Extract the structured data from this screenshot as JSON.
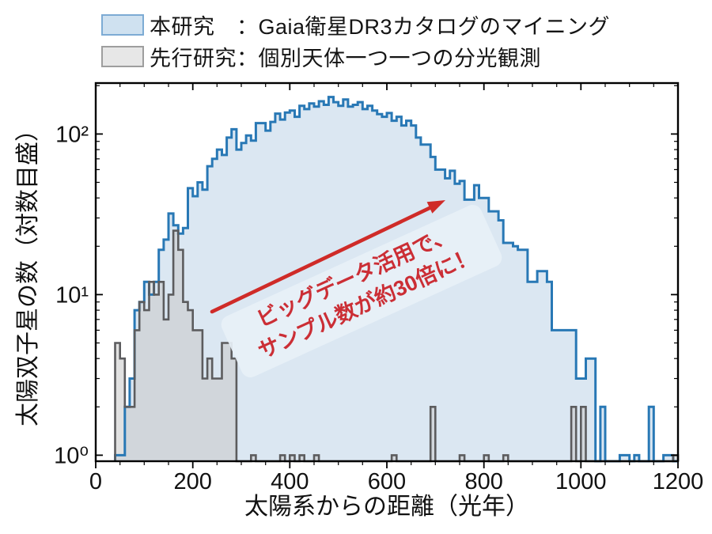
{
  "legend": {
    "items": [
      {
        "id": "this-study",
        "label": "本研究　：Gaia衛星DR3カタログのマイニング",
        "swatch_fill": "#cfe1f0",
        "swatch_border": "#7dabd4"
      },
      {
        "id": "prior-study",
        "label": "先行研究：個別天体一つ一つの分光観測",
        "swatch_fill": "#e7e7e7",
        "swatch_border": "#9e9e9e"
      }
    ]
  },
  "annotation": {
    "line1": "ビッグデータ活用で、",
    "line2": "サンプル数が約30倍に！",
    "text_color": "#cb2e35",
    "box_color": "rgba(231,240,248,0.93)",
    "arrow_color": "#cf2b28"
  },
  "axes": {
    "xlabel": "太陽系からの距離（光年）",
    "ylabel": "太陽双子星の数（対数目盛）",
    "x_ticks": [
      0,
      200,
      400,
      600,
      800,
      1000,
      1200
    ],
    "x_minor_step": 50,
    "y_tick_values": [
      1,
      10,
      100
    ],
    "y_tick_labels": [
      "10⁰",
      "10¹",
      "10²"
    ],
    "y_minor_values": [
      2,
      3,
      4,
      5,
      6,
      7,
      8,
      9,
      20,
      30,
      40,
      50,
      60,
      70,
      80,
      90,
      200
    ]
  },
  "chart_data": {
    "type": "histogram",
    "title": "",
    "xlabel": "太陽系からの距離（光年）",
    "ylabel": "太陽双子星の数（対数目盛）",
    "x_unit": "light-years",
    "bin_start": 40,
    "bin_width": 10,
    "xlim": [
      0,
      1200
    ],
    "ylim": [
      0.91,
      208
    ],
    "y_scale": "log",
    "grid": false,
    "legend_position": "top-left-outside",
    "series": [
      {
        "name": "本研究：Gaia衛星DR3カタログのマイニング",
        "edge_color": "#2878b5",
        "fill_color": "#dbe7f2",
        "values": [
          1,
          1,
          2,
          3,
          8,
          9,
          12,
          10,
          12,
          19,
          22,
          32,
          27,
          24,
          26,
          46,
          41,
          50,
          45,
          63,
          70,
          80,
          74,
          95,
          107,
          80,
          88,
          98,
          91,
          117,
          117,
          105,
          119,
          134,
          123,
          136,
          140,
          128,
          150,
          143,
          155,
          148,
          160,
          152,
          170,
          158,
          150,
          164,
          148,
          152,
          158,
          143,
          150,
          140,
          133,
          128,
          135,
          121,
          128,
          113,
          121,
          113,
          95,
          86,
          86,
          72,
          60,
          60,
          53,
          59,
          49,
          51,
          39,
          39,
          48,
          40,
          40,
          33,
          33,
          29,
          21,
          21,
          20,
          19,
          19,
          12,
          12,
          14,
          14,
          12,
          6,
          6,
          6,
          6,
          6,
          3,
          3,
          4,
          4,
          0,
          2,
          0,
          0,
          0,
          1,
          1,
          0,
          1,
          0,
          0,
          2,
          0,
          0,
          1,
          1,
          0
        ]
      },
      {
        "name": "先行研究：個別天体一つ一つの分光観測",
        "edge_color": "#5c5c5e",
        "fill_color": "rgba(200,200,200,0.55)",
        "values": [
          5,
          4,
          2,
          2,
          6,
          9,
          8,
          12,
          10,
          12,
          7,
          10,
          25,
          19,
          9,
          8,
          6,
          6,
          3,
          4,
          3,
          3,
          5,
          5,
          4,
          0,
          0,
          0,
          1,
          0,
          0,
          0,
          0,
          0,
          1,
          0,
          1,
          0,
          1,
          0,
          0,
          1,
          0,
          0,
          0,
          0,
          0,
          0,
          0,
          0,
          0,
          0,
          0,
          0,
          0,
          0,
          0,
          1,
          0,
          0,
          0,
          0,
          0,
          0,
          0,
          2,
          0,
          0,
          0,
          0,
          0,
          1,
          0,
          0,
          0,
          0,
          1,
          0,
          0,
          0,
          1,
          0,
          0,
          0,
          0,
          0,
          0,
          0,
          0,
          0,
          0,
          0,
          0,
          0,
          2,
          0,
          2,
          0,
          0,
          0,
          0,
          0,
          0,
          0,
          0,
          0,
          0,
          0,
          0,
          0,
          0,
          0,
          0,
          0,
          0,
          1
        ]
      }
    ]
  }
}
